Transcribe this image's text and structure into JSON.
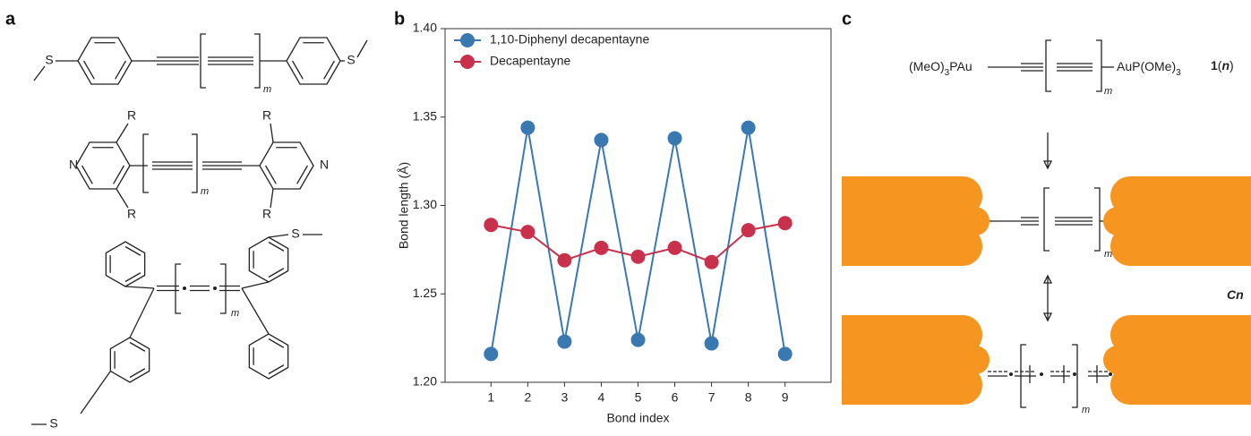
{
  "panel_a": {
    "label": "a",
    "structure_1": {
      "atoms": [
        "S",
        "S"
      ],
      "repeat": "m"
    },
    "structure_2": {
      "atoms": [
        "N",
        "N",
        "R",
        "R",
        "R",
        "R"
      ],
      "repeat": "m"
    },
    "structure_3": {
      "atoms": [
        "S",
        "S"
      ],
      "repeat": "m"
    }
  },
  "panel_b": {
    "label": "b"
  },
  "chart_data": {
    "type": "line",
    "x_label": "Bond index",
    "y_label": "Bond length (Å)",
    "x": [
      1,
      2,
      3,
      4,
      5,
      6,
      7,
      8,
      9
    ],
    "series": [
      {
        "name": "1,10-Diphenyl decapentayne",
        "color": "#3a78b2",
        "values": [
          1.216,
          1.344,
          1.223,
          1.337,
          1.224,
          1.338,
          1.222,
          1.344,
          1.216
        ]
      },
      {
        "name": "Decapentayne",
        "color": "#c9304b",
        "values": [
          1.289,
          1.285,
          1.269,
          1.276,
          1.271,
          1.276,
          1.268,
          1.286,
          1.29
        ]
      }
    ],
    "xlim": [
      -0.25,
      10.25
    ],
    "xticks": [
      1,
      2,
      3,
      4,
      5,
      6,
      7,
      8,
      9
    ],
    "ylim": [
      1.2,
      1.4
    ],
    "yticks": [
      {
        "value": 1.2,
        "label": "1.20"
      },
      {
        "value": 1.25,
        "label": "1.25"
      },
      {
        "value": 1.3,
        "label": "1.30"
      },
      {
        "value": 1.35,
        "label": "1.35"
      },
      {
        "value": 1.4,
        "label": "1.40"
      }
    ],
    "legend": "upper left",
    "grid": false
  },
  "panel_c": {
    "label": "c",
    "left_group": {
      "text": "(MeO)",
      "subscript": "3",
      "suffix": "PAu"
    },
    "right_group": {
      "text": "AuP(OMe)",
      "subscript": "3"
    },
    "compound": {
      "number": "1",
      "open": "(",
      "variable": "n",
      "close": ")"
    },
    "junction": {
      "letter": "C",
      "variable": "n"
    },
    "repeats": [
      "m",
      "m",
      "m"
    ]
  }
}
